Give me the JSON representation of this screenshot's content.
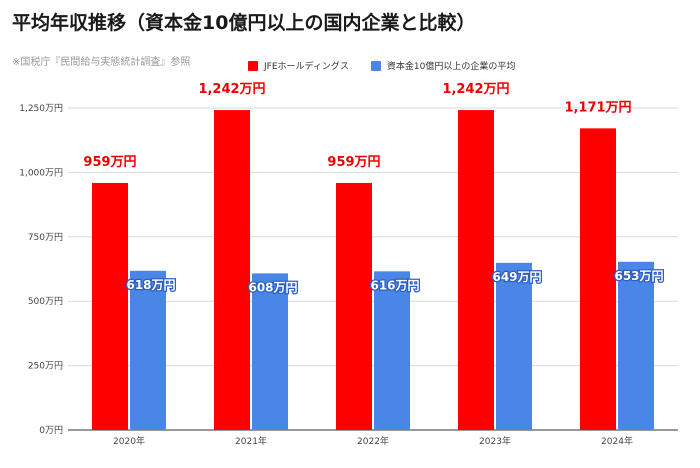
{
  "title": "平均年収推移（資本金10億円以上の国内企業と比較）",
  "source": "※国税庁『民間給与実態統計調査』参照",
  "chart_data": {
    "type": "bar",
    "categories": [
      "2020年",
      "2021年",
      "2022年",
      "2023年",
      "2024年"
    ],
    "series": [
      {
        "name": "JFEホールディングス",
        "color": "#ff0000",
        "values": [
          959,
          1242,
          959,
          1242,
          1171
        ],
        "labels": [
          "959万円",
          "1,242万円",
          "959万円",
          "1,242万円",
          "1,171万円"
        ]
      },
      {
        "name": "資本金10億円以上の企業の平均",
        "color": "#4a86e8",
        "values": [
          618,
          608,
          616,
          649,
          653
        ],
        "labels": [
          "618万円",
          "608万円",
          "616万円",
          "649万円",
          "653万円"
        ]
      }
    ],
    "yticks": [
      {
        "value": 0,
        "label": "0万円"
      },
      {
        "value": 250,
        "label": "250万円"
      },
      {
        "value": 500,
        "label": "500万円"
      },
      {
        "value": 750,
        "label": "750万円"
      },
      {
        "value": 1000,
        "label": "1,000万円"
      },
      {
        "value": 1250,
        "label": "1,250万円"
      }
    ],
    "ylim": [
      0,
      1250
    ],
    "grid": true,
    "legend_position": "top"
  }
}
